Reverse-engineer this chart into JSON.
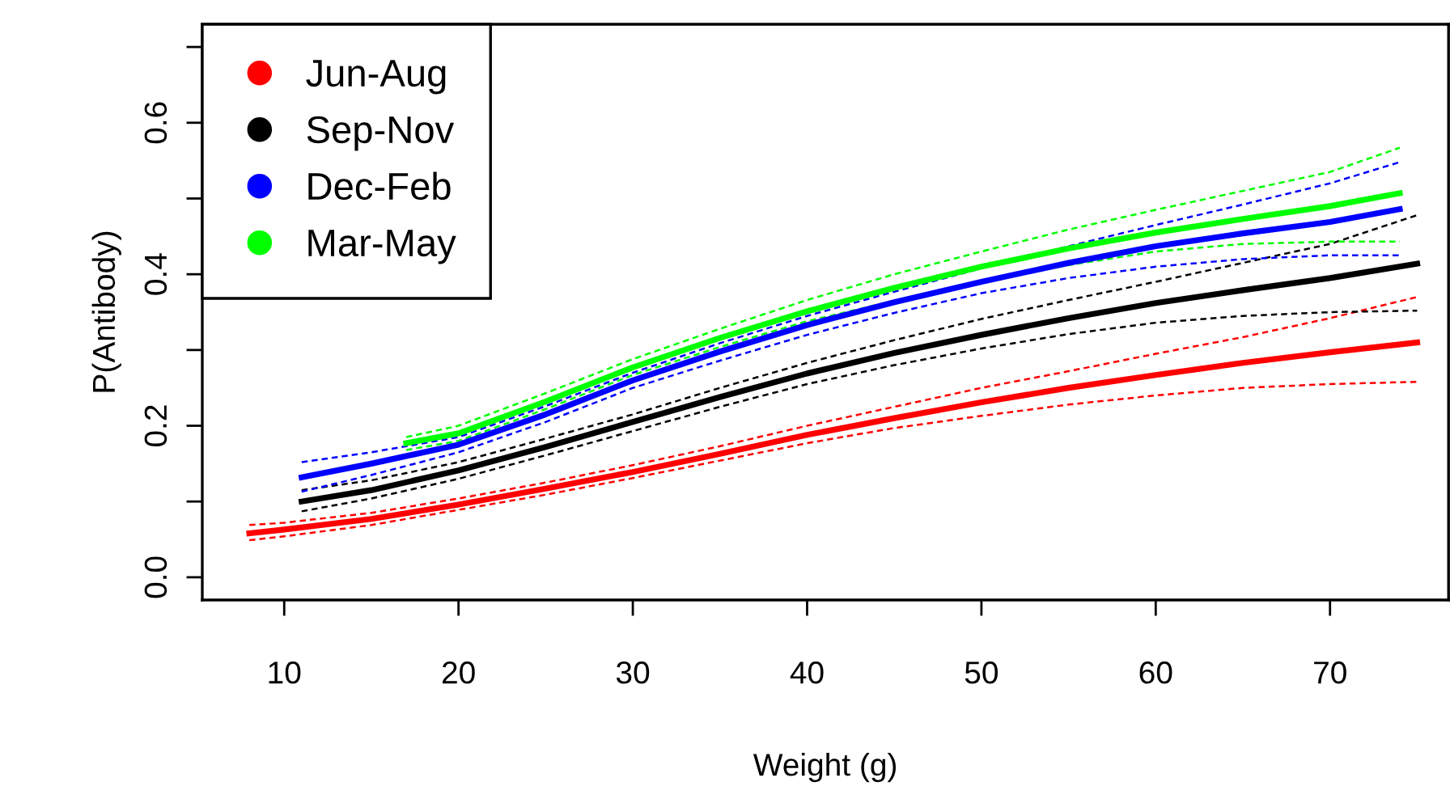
{
  "chart_data": {
    "type": "line",
    "xlabel": "Weight (g)",
    "ylabel": "P(Antibody)",
    "xlim": [
      5.3,
      76.8
    ],
    "ylim": [
      -0.03,
      0.73
    ],
    "xticks": [
      10,
      20,
      30,
      40,
      50,
      60,
      70
    ],
    "yticks": [
      {
        "value": 0.0,
        "label": "0.0"
      },
      {
        "value": 0.1,
        "label": null
      },
      {
        "value": 0.2,
        "label": "0.2"
      },
      {
        "value": 0.3,
        "label": null
      },
      {
        "value": 0.4,
        "label": "0.4"
      },
      {
        "value": 0.5,
        "label": null
      },
      {
        "value": 0.6,
        "label": "0.6"
      },
      {
        "value": 0.7,
        "label": null
      }
    ],
    "legend": "top left",
    "grid": false,
    "line_style": "solid",
    "series": [
      {
        "name": "Jun-Aug",
        "color": "#ff0000",
        "x": [
          8,
          10,
          15,
          20,
          25,
          30,
          35,
          40,
          45,
          50,
          55,
          60,
          65,
          70,
          75
        ],
        "values": [
          0.058,
          0.063,
          0.077,
          0.096,
          0.117,
          0.139,
          0.163,
          0.188,
          0.21,
          0.231,
          0.25,
          0.267,
          0.283,
          0.297,
          0.31
        ]
      },
      {
        "color": "#ff0000",
        "line_style": "dashed",
        "x": [
          8,
          10,
          15,
          20,
          25,
          30,
          35,
          40,
          45,
          50,
          55,
          60,
          65,
          70,
          75
        ],
        "values": [
          0.069,
          0.072,
          0.085,
          0.104,
          0.125,
          0.148,
          0.173,
          0.2,
          0.225,
          0.25,
          0.272,
          0.295,
          0.317,
          0.342,
          0.37
        ]
      },
      {
        "color": "#ff0000",
        "line_style": "dashed",
        "x": [
          8,
          10,
          15,
          20,
          25,
          30,
          35,
          40,
          45,
          50,
          55,
          60,
          65,
          70,
          75
        ],
        "values": [
          0.049,
          0.054,
          0.069,
          0.089,
          0.109,
          0.131,
          0.154,
          0.177,
          0.197,
          0.213,
          0.228,
          0.24,
          0.25,
          0.255,
          0.258
        ]
      },
      {
        "name": "Sep-Nov",
        "color": "#000000",
        "x": [
          11,
          15,
          20,
          25,
          30,
          35,
          40,
          45,
          50,
          55,
          60,
          65,
          70,
          75
        ],
        "values": [
          0.1,
          0.115,
          0.141,
          0.172,
          0.205,
          0.238,
          0.269,
          0.296,
          0.32,
          0.342,
          0.362,
          0.379,
          0.395,
          0.414
        ]
      },
      {
        "color": "#000000",
        "line_style": "dashed",
        "x": [
          11,
          15,
          20,
          25,
          30,
          35,
          40,
          45,
          50,
          55,
          60,
          65,
          70,
          75
        ],
        "values": [
          0.115,
          0.128,
          0.152,
          0.183,
          0.215,
          0.25,
          0.283,
          0.313,
          0.341,
          0.366,
          0.39,
          0.415,
          0.44,
          0.478
        ]
      },
      {
        "color": "#000000",
        "line_style": "dashed",
        "x": [
          11,
          15,
          20,
          25,
          30,
          35,
          40,
          45,
          50,
          55,
          60,
          65,
          70,
          75
        ],
        "values": [
          0.087,
          0.104,
          0.13,
          0.161,
          0.193,
          0.225,
          0.255,
          0.28,
          0.302,
          0.321,
          0.336,
          0.345,
          0.35,
          0.352
        ]
      },
      {
        "name": "Dec-Feb",
        "color": "#0000ff",
        "x": [
          11,
          15,
          20,
          25,
          30,
          35,
          40,
          45,
          50,
          55,
          60,
          65,
          70,
          74
        ],
        "values": [
          0.132,
          0.15,
          0.175,
          0.215,
          0.26,
          0.298,
          0.333,
          0.363,
          0.39,
          0.415,
          0.437,
          0.454,
          0.469,
          0.486
        ]
      },
      {
        "color": "#0000ff",
        "line_style": "dashed",
        "x": [
          11,
          15,
          20,
          25,
          30,
          35,
          40,
          45,
          50,
          55,
          60,
          65,
          70,
          74
        ],
        "values": [
          0.152,
          0.165,
          0.185,
          0.226,
          0.27,
          0.309,
          0.345,
          0.377,
          0.408,
          0.437,
          0.465,
          0.492,
          0.52,
          0.548
        ]
      },
      {
        "color": "#0000ff",
        "line_style": "dashed",
        "x": [
          11,
          15,
          20,
          25,
          30,
          35,
          40,
          45,
          50,
          55,
          60,
          65,
          70,
          74
        ],
        "values": [
          0.113,
          0.135,
          0.165,
          0.205,
          0.25,
          0.286,
          0.32,
          0.349,
          0.375,
          0.395,
          0.41,
          0.42,
          0.425,
          0.425
        ]
      },
      {
        "name": "Mar-May",
        "color": "#00ff00",
        "x": [
          17,
          20,
          25,
          30,
          35,
          40,
          45,
          50,
          55,
          60,
          65,
          70,
          74
        ],
        "values": [
          0.177,
          0.19,
          0.232,
          0.277,
          0.316,
          0.351,
          0.382,
          0.41,
          0.434,
          0.455,
          0.473,
          0.49,
          0.507
        ]
      },
      {
        "color": "#00ff00",
        "line_style": "dashed",
        "x": [
          17,
          20,
          25,
          30,
          35,
          40,
          45,
          50,
          55,
          60,
          65,
          70,
          74
        ],
        "values": [
          0.185,
          0.2,
          0.243,
          0.288,
          0.328,
          0.366,
          0.4,
          0.43,
          0.459,
          0.485,
          0.51,
          0.535,
          0.567
        ]
      },
      {
        "color": "#00ff00",
        "line_style": "dashed",
        "x": [
          17,
          20,
          25,
          30,
          35,
          40,
          45,
          50,
          55,
          60,
          65,
          70,
          74
        ],
        "values": [
          0.168,
          0.18,
          0.222,
          0.267,
          0.304,
          0.338,
          0.365,
          0.39,
          0.412,
          0.43,
          0.44,
          0.443,
          0.443
        ]
      }
    ]
  }
}
